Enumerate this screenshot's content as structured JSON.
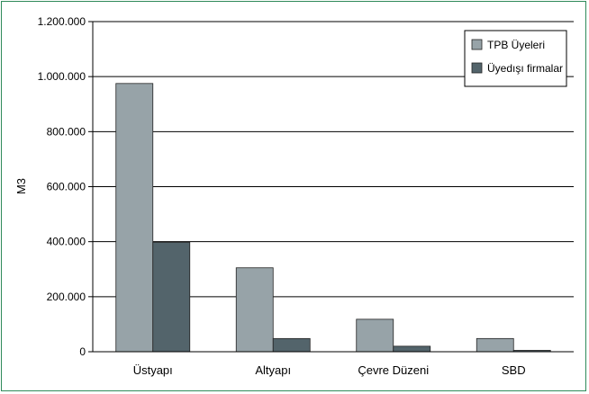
{
  "chart_data": {
    "type": "bar",
    "title": "",
    "xlabel": "",
    "ylabel": "M3",
    "categories": [
      "Üstyapı",
      "Altyapı",
      "Çevre Düzeni",
      "SBD"
    ],
    "series": [
      {
        "name": "TPB Üyeleri",
        "values": [
          975000,
          305000,
          118000,
          48000
        ],
        "color": "#97a3a8"
      },
      {
        "name": "Üyedışı firmalar",
        "values": [
          398000,
          48000,
          20000,
          5000
        ],
        "color": "#53646b"
      }
    ],
    "ylim": [
      0,
      1200000
    ],
    "yticks": [
      0,
      200000,
      400000,
      600000,
      800000,
      1000000,
      1200000
    ],
    "ytick_labels": [
      "0",
      "200.000",
      "400.000",
      "600.000",
      "800.000",
      "1.000.000",
      "1.200.000"
    ],
    "grid": true,
    "legend_position": "top-right",
    "colors": {
      "frame_border": "#2f8a5a",
      "gridline": "#000000"
    }
  }
}
